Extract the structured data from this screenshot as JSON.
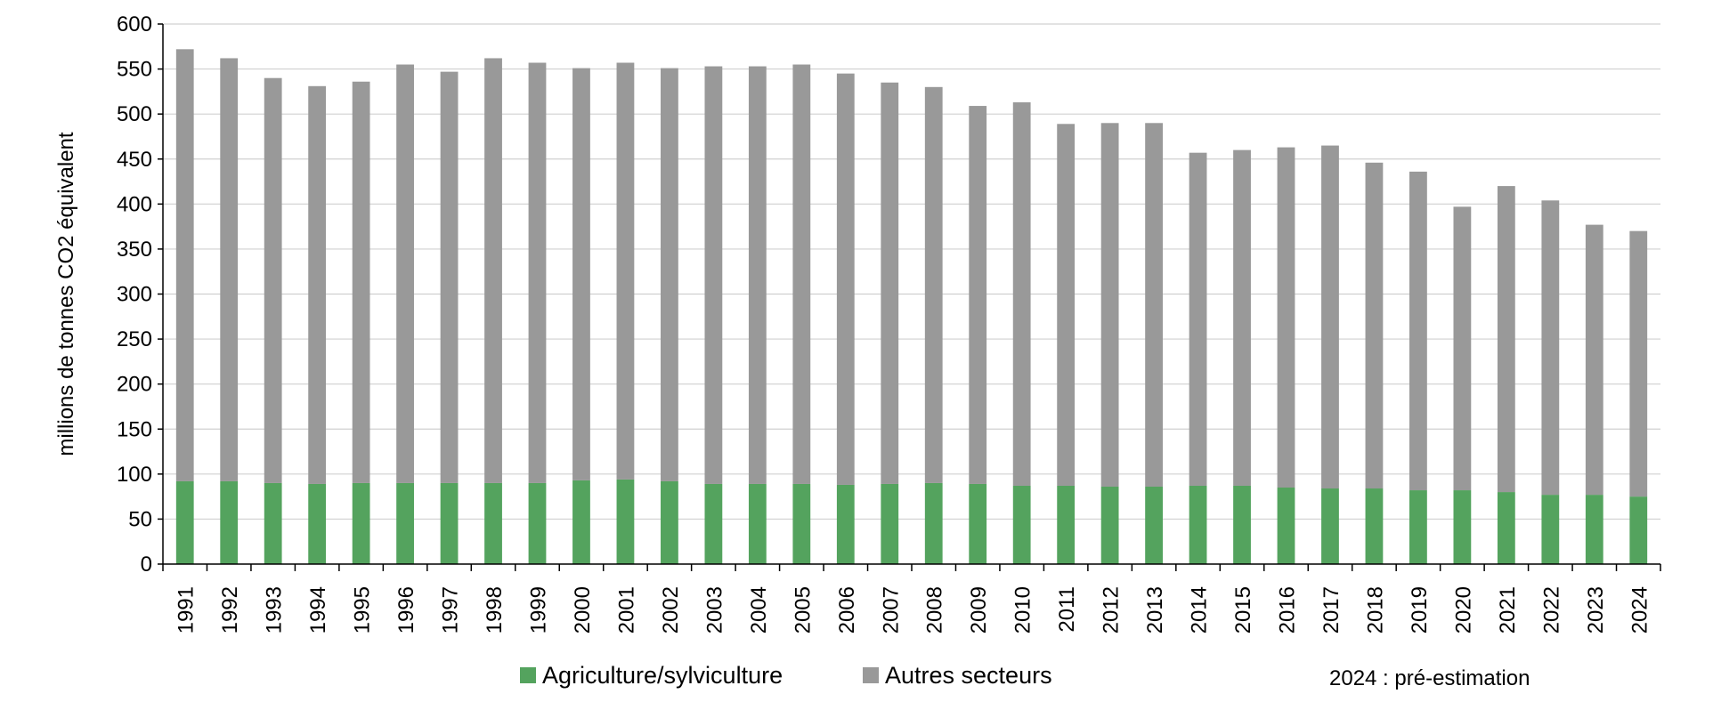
{
  "chart_data": {
    "type": "bar",
    "stacked": true,
    "categories": [
      "1991",
      "1992",
      "1993",
      "1994",
      "1995",
      "1996",
      "1997",
      "1998",
      "1999",
      "2000",
      "2001",
      "2002",
      "2003",
      "2004",
      "2005",
      "2006",
      "2007",
      "2008",
      "2009",
      "2010",
      "2011",
      "2012",
      "2013",
      "2014",
      "2015",
      "2016",
      "2017",
      "2018",
      "2019",
      "2020",
      "2021",
      "2022",
      "2023",
      "2024"
    ],
    "series": [
      {
        "name": "Agriculture/sylviculture",
        "color": "#54a35e",
        "values": [
          92,
          92,
          90,
          89,
          90,
          90,
          90,
          90,
          90,
          93,
          94,
          92,
          89,
          89,
          89,
          88,
          89,
          90,
          89,
          87,
          87,
          86,
          86,
          87,
          87,
          85,
          84,
          84,
          82,
          82,
          80,
          77,
          77,
          75
        ]
      },
      {
        "name": "Autres secteurs",
        "color": "#999999",
        "values": [
          480,
          470,
          450,
          442,
          446,
          465,
          457,
          472,
          467,
          458,
          463,
          459,
          464,
          464,
          466,
          457,
          446,
          440,
          420,
          426,
          402,
          404,
          404,
          370,
          373,
          378,
          381,
          362,
          354,
          315,
          340,
          327,
          300,
          295
        ]
      }
    ],
    "title": "",
    "xlabel": "",
    "ylabel": "millions de tonnes CO2 équivalent",
    "ylim": [
      0,
      600
    ],
    "yticks": [
      "0",
      "50",
      "100",
      "150",
      "200",
      "250",
      "300",
      "350",
      "400",
      "450",
      "500",
      "550",
      "600"
    ],
    "grid": true,
    "legend_position": "bottom",
    "note": "2024 : pré-estimation"
  }
}
